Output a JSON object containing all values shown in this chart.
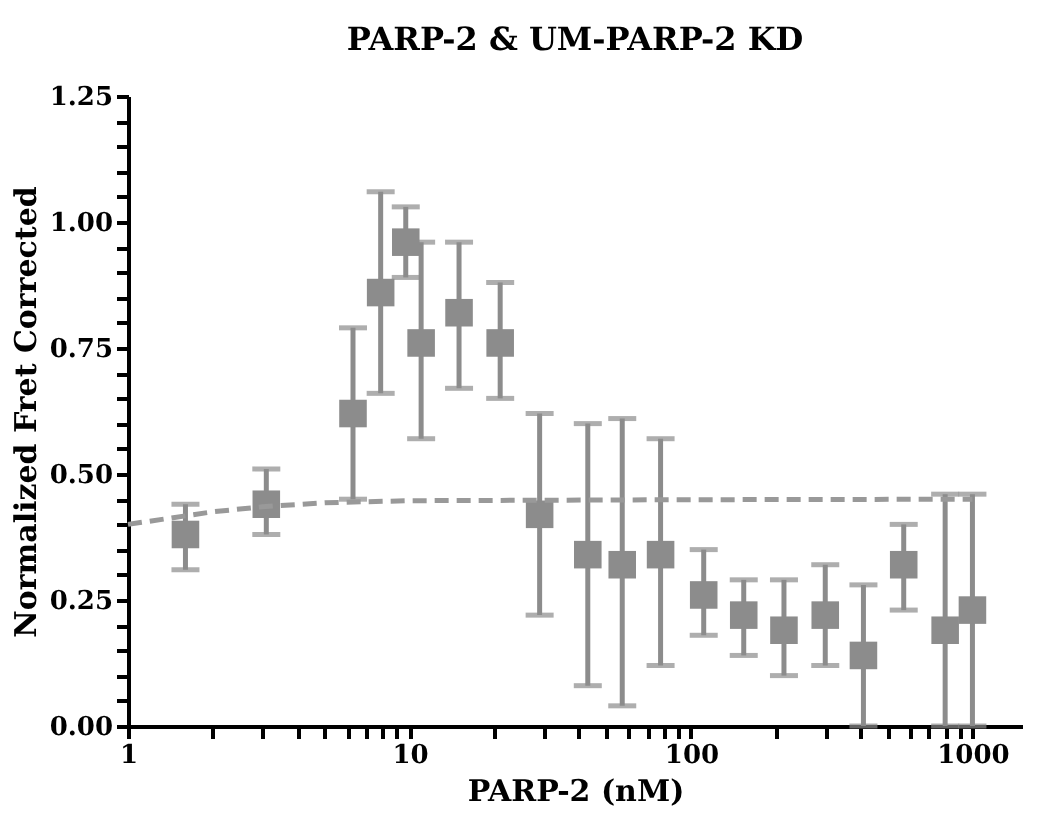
{
  "chart_data": {
    "type": "scatter",
    "title": "PARP-2 & UM-PARP-2 KD",
    "xlabel": "PARP-2 (nM)",
    "ylabel": "Normalized Fret Corrected",
    "log": "x",
    "grid": false,
    "marker": "square",
    "xlim": [
      1,
      1500
    ],
    "ylim": [
      0,
      1.25
    ],
    "xticks": [
      1,
      {
        "value": 2,
        "label": null
      },
      {
        "value": 3,
        "label": null
      },
      {
        "value": 4,
        "label": null
      },
      {
        "value": 5,
        "label": null
      },
      {
        "value": 6,
        "label": null
      },
      {
        "value": 7,
        "label": null
      },
      {
        "value": 8,
        "label": null
      },
      {
        "value": 9,
        "label": null
      },
      10,
      {
        "value": 20,
        "label": null
      },
      {
        "value": 30,
        "label": null
      },
      {
        "value": 40,
        "label": null
      },
      {
        "value": 50,
        "label": null
      },
      {
        "value": 60,
        "label": null
      },
      {
        "value": 70,
        "label": null
      },
      {
        "value": 80,
        "label": null
      },
      {
        "value": 90,
        "label": null
      },
      100,
      {
        "value": 200,
        "label": null
      },
      {
        "value": 300,
        "label": null
      },
      {
        "value": 400,
        "label": null
      },
      {
        "value": 500,
        "label": null
      },
      {
        "value": 600,
        "label": null
      },
      {
        "value": 700,
        "label": null
      },
      {
        "value": 800,
        "label": null
      },
      {
        "value": 900,
        "label": null
      },
      1000
    ],
    "yticks": [
      {
        "value": 0,
        "label": "0.00"
      },
      {
        "value": 0.05,
        "label": null
      },
      {
        "value": 0.1,
        "label": null
      },
      {
        "value": 0.15,
        "label": null
      },
      {
        "value": 0.2,
        "label": null
      },
      {
        "value": 0.25,
        "label": "0.25"
      },
      {
        "value": 0.3,
        "label": null
      },
      {
        "value": 0.35,
        "label": null
      },
      {
        "value": 0.4,
        "label": null
      },
      {
        "value": 0.45,
        "label": null
      },
      {
        "value": 0.5,
        "label": "0.50"
      },
      {
        "value": 0.55,
        "label": null
      },
      {
        "value": 0.6,
        "label": null
      },
      {
        "value": 0.65,
        "label": null
      },
      {
        "value": 0.7,
        "label": null
      },
      {
        "value": 0.75,
        "label": "0.75"
      },
      {
        "value": 0.8,
        "label": null
      },
      {
        "value": 0.85,
        "label": null
      },
      {
        "value": 0.9,
        "label": null
      },
      {
        "value": 0.95,
        "label": null
      },
      {
        "value": 1.0,
        "label": "1.00"
      },
      {
        "value": 1.05,
        "label": null
      },
      {
        "value": 1.1,
        "label": null
      },
      {
        "value": 1.15,
        "label": null
      },
      {
        "value": 1.2,
        "label": null
      },
      {
        "value": 1.25,
        "label": "1.25"
      }
    ],
    "series": [
      {
        "color": "#8c8c8c",
        "x": [
          1.6,
          3.1,
          6.3,
          7.9,
          9.7,
          11,
          15,
          21,
          29,
          43,
          57,
          78,
          111,
          154,
          214,
          300,
          410,
          570,
          800,
          1000
        ],
        "values": [
          0.38,
          0.44,
          0.62,
          0.86,
          0.96,
          0.76,
          0.82,
          0.76,
          0.42,
          0.34,
          0.32,
          0.34,
          0.26,
          0.22,
          0.19,
          0.22,
          0.14,
          0.32,
          0.19,
          0.23
        ],
        "errors": [
          [
            0.31,
            0.44
          ],
          [
            0.38,
            0.51
          ],
          [
            0.45,
            0.79
          ],
          [
            0.66,
            1.06
          ],
          [
            0.89,
            1.03
          ],
          [
            0.57,
            0.96
          ],
          [
            0.67,
            0.96
          ],
          [
            0.65,
            0.88
          ],
          [
            0.22,
            0.62
          ],
          [
            0.08,
            0.6
          ],
          [
            0.04,
            0.61
          ],
          [
            0.12,
            0.57
          ],
          [
            0.18,
            0.35
          ],
          [
            0.14,
            0.29
          ],
          [
            0.1,
            0.29
          ],
          [
            0.12,
            0.32
          ],
          [
            0.0,
            0.28
          ],
          [
            0.23,
            0.4
          ],
          [
            0.0,
            0.46
          ],
          [
            0.0,
            0.46
          ]
        ]
      },
      {
        "type": "line",
        "color": "#999999",
        "line_style": "dashed",
        "marker": "none",
        "x": [
          1,
          2,
          3,
          5,
          10,
          100,
          1000
        ],
        "values": [
          0.4,
          0.425,
          0.435,
          0.443,
          0.447,
          0.449,
          0.45
        ]
      }
    ]
  }
}
